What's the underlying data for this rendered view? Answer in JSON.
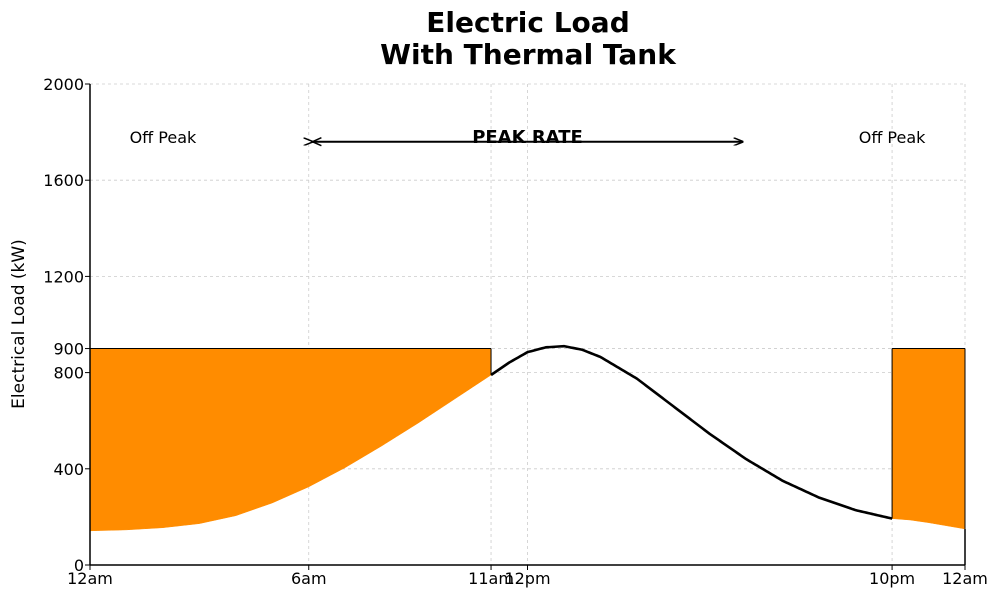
{
  "chart_data": {
    "type": "area",
    "title_lines": [
      "Electric Load",
      "With Thermal Tank"
    ],
    "xlabel": "",
    "ylabel": "Electrical Load (kW)",
    "xlim": [
      0,
      24
    ],
    "ylim": [
      0,
      2000
    ],
    "x_ticks": [
      {
        "value": 0,
        "label": "12am"
      },
      {
        "value": 6,
        "label": "6am"
      },
      {
        "value": 11,
        "label": "11am"
      },
      {
        "value": 12,
        "label": "12pm"
      },
      {
        "value": 22,
        "label": "10pm"
      },
      {
        "value": 24,
        "label": "12am"
      }
    ],
    "y_ticks": [
      {
        "value": 0,
        "label": "0"
      },
      {
        "value": 400,
        "label": "400"
      },
      {
        "value": 800,
        "label": "800"
      },
      {
        "value": 900,
        "label": "900"
      },
      {
        "value": 1200,
        "label": "1200"
      },
      {
        "value": 1600,
        "label": "1600"
      },
      {
        "value": 2000,
        "label": "2000"
      }
    ],
    "grid": true,
    "line_color": "#000000",
    "fill_color": "#ff8c00",
    "load_curve": {
      "x": [
        0,
        1,
        2,
        3,
        4,
        5,
        6,
        7,
        8,
        9,
        10,
        11,
        11.5,
        12,
        12.5,
        13,
        13.5,
        14,
        15,
        16,
        17,
        18,
        19,
        20,
        21,
        22,
        22.5,
        23,
        24
      ],
      "y": [
        142,
        146,
        155,
        172,
        205,
        258,
        325,
        405,
        495,
        590,
        690,
        790,
        842,
        885,
        905,
        910,
        895,
        865,
        775,
        660,
        545,
        440,
        350,
        280,
        228,
        193,
        187,
        176,
        150
      ]
    },
    "tank_charging": [
      {
        "x_start": 0,
        "x_end": 11,
        "level": 900
      },
      {
        "x_start": 22,
        "x_end": 24,
        "level": 900
      }
    ],
    "annotations": [
      {
        "text": "Off Peak",
        "x": 2,
        "y": 1780,
        "bold": false
      },
      {
        "text": "PEAK RATE",
        "x": 12,
        "y": 1780,
        "bold": true
      },
      {
        "text": "Off Peak",
        "x": 22,
        "y": 1780,
        "bold": false
      }
    ],
    "peak_arrow": {
      "x_start": 6.1,
      "x_end": 17.9,
      "y": 1760
    }
  }
}
